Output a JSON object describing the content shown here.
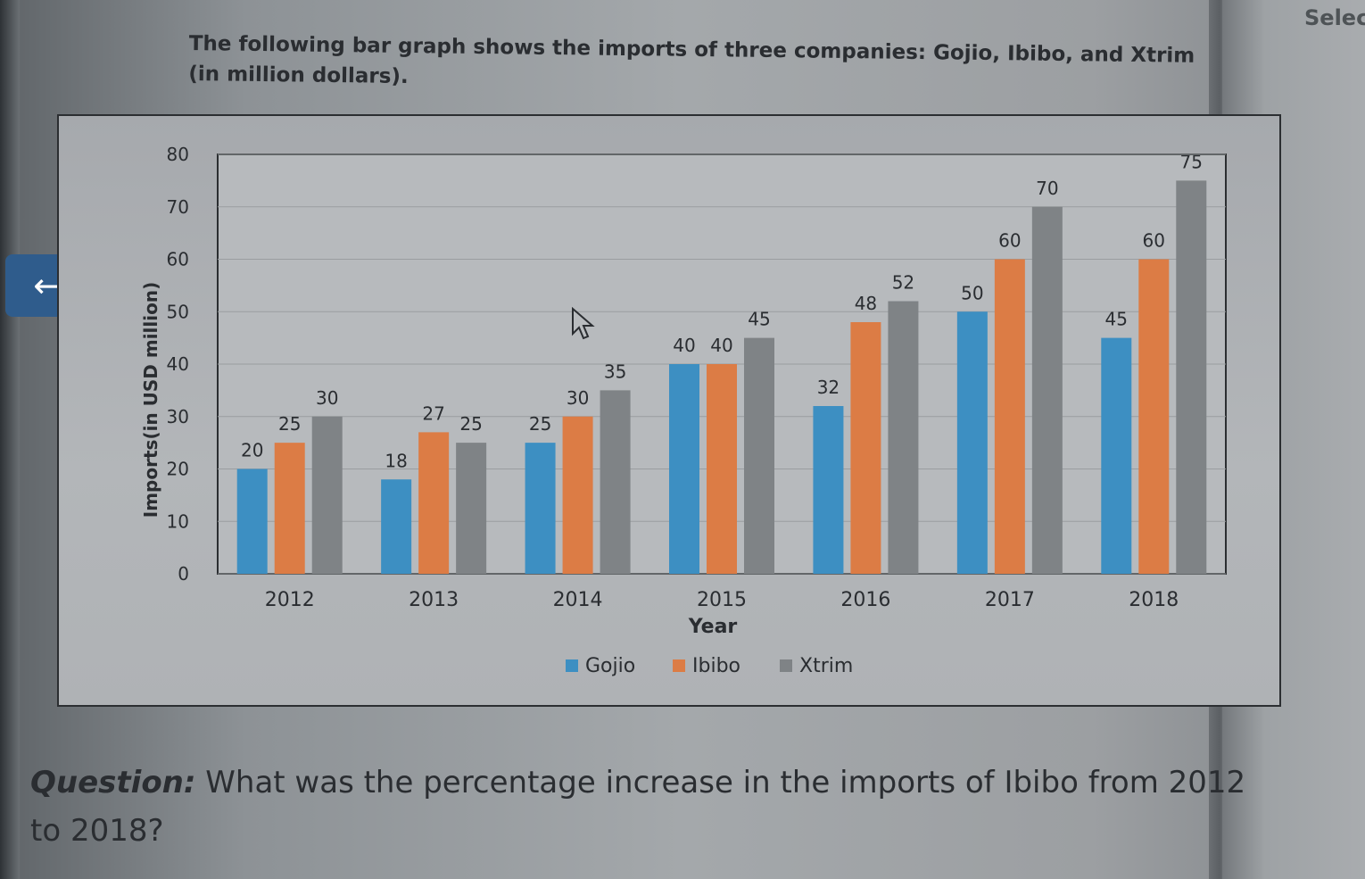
{
  "header": {
    "select_label": "Selec"
  },
  "intro": "The following bar graph shows the imports of three companies: Gojio, Ibibo, and Xtrim (in million dollars).",
  "back_icon": "arrow-left-icon",
  "question": {
    "prefix": "Question:",
    "text": " What was the percentage increase in the imports of Ibibo from 2012 to 2018?"
  },
  "colors": {
    "Gojio": "#3d8fc2",
    "Ibibo": "#dc7c45",
    "Xtrim": "#7f8386",
    "accent": "#2f5c8c"
  },
  "chart_data": {
    "type": "bar",
    "categories": [
      "2012",
      "2013",
      "2014",
      "2015",
      "2016",
      "2017",
      "2018"
    ],
    "series": [
      {
        "name": "Gojio",
        "values": [
          20,
          18,
          25,
          40,
          32,
          50,
          45
        ]
      },
      {
        "name": "Ibibo",
        "values": [
          25,
          27,
          30,
          40,
          48,
          60,
          60
        ]
      },
      {
        "name": "Xtrim",
        "values": [
          30,
          25,
          35,
          45,
          52,
          70,
          75
        ]
      }
    ],
    "xlabel": "Year",
    "ylabel": "Imports(in USD million)",
    "ylim": [
      0,
      80
    ],
    "yticks": [
      0,
      10,
      20,
      30,
      40,
      50,
      60,
      70,
      80
    ],
    "legend_position": "bottom",
    "grid": true
  }
}
